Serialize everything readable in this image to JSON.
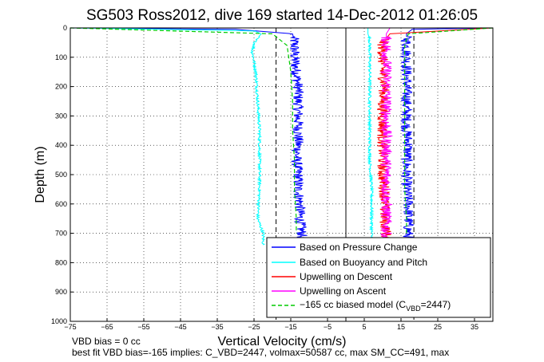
{
  "chart_data": {
    "type": "line",
    "title": "SG503 Ross2012, dive 169 started 14-Dec-2012 01:26:05",
    "xlabel": "Vertical Velocity (cm/s)",
    "ylabel": "Depth (m)",
    "xlim": [
      -75,
      40
    ],
    "ylim": [
      1000,
      0
    ],
    "y_reversed": true,
    "grid": true,
    "legend_position": "bottom-right",
    "xticks": [
      -75,
      -65,
      -55,
      -45,
      -35,
      -25,
      -15,
      -5,
      5,
      15,
      25,
      35
    ],
    "yticks": [
      0,
      100,
      200,
      300,
      400,
      500,
      600,
      700,
      800,
      900,
      1000
    ],
    "reference_lines": [
      {
        "x": 0,
        "style": "solid",
        "color": "#000000"
      },
      {
        "x": -19,
        "style": "dashed",
        "color": "#000000"
      },
      {
        "x": 18.5,
        "style": "dashed",
        "color": "#000000"
      }
    ],
    "series": [
      {
        "name": "Based on Pressure Change",
        "color": "#0000ff",
        "style": "solid",
        "depth": [
          0,
          5,
          20,
          50,
          100,
          150,
          200,
          250,
          300,
          350,
          400,
          450,
          500,
          550,
          600,
          650,
          700,
          720
        ],
        "descent_velocity": [
          -75,
          -30,
          -14.5,
          -14,
          -14,
          -13.5,
          -13,
          -13,
          -13,
          -13,
          -13,
          -13.5,
          -13,
          -13,
          -12.5,
          -12.5,
          -12,
          -12
        ],
        "ascent_velocity": [
          40,
          18,
          16.5,
          16.5,
          16.5,
          16.5,
          16.5,
          16.5,
          16.5,
          16.5,
          17,
          16.5,
          16.5,
          16.5,
          17,
          17,
          17,
          17
        ]
      },
      {
        "name": "Based on Buoyancy and Pitch",
        "color": "#00ffff",
        "style": "solid",
        "depth": [
          0,
          5,
          10,
          20,
          40,
          80,
          150,
          250,
          350,
          450,
          550,
          650,
          700,
          740
        ],
        "descent_velocity": [
          -75,
          -50,
          -25,
          -23,
          -24.5,
          -25.5,
          -24.5,
          -24,
          -23.5,
          -23.5,
          -23.5,
          -24,
          -22.5,
          -22.5
        ],
        "ascent_velocity": [
          6,
          6,
          6,
          6,
          6.5,
          6.5,
          6.5,
          6.5,
          6.5,
          6.5,
          7,
          7,
          7,
          7
        ]
      },
      {
        "name": "Upwelling on Descent",
        "color": "#ff0000",
        "style": "solid",
        "depth": [
          0,
          20,
          50,
          100,
          150,
          200,
          250,
          300,
          350,
          400,
          450,
          500,
          550,
          600,
          650,
          700,
          720
        ],
        "velocity": [
          40,
          12,
          10,
          10,
          10,
          10.5,
          10,
          10,
          10,
          10,
          10,
          10,
          10.5,
          10.5,
          10.5,
          11,
          11
        ]
      },
      {
        "name": "Upwelling on Ascent",
        "color": "#ff00ff",
        "style": "solid",
        "depth": [
          0,
          20,
          50,
          100,
          150,
          200,
          250,
          300,
          350,
          400,
          450,
          500,
          550,
          600,
          650,
          700,
          720
        ],
        "velocity": [
          12,
          11,
          11,
          11,
          11,
          11,
          11,
          11,
          11,
          11,
          11,
          11,
          11,
          11,
          11,
          11,
          11
        ]
      },
      {
        "name": "-165 cc biased model",
        "legend_label_prefix": "−165 cc biased model (C",
        "legend_label_subscript": "VBD",
        "legend_label_suffix": "=2447)",
        "color": "#00cc00",
        "style": "dashed",
        "depth": [
          0,
          20,
          60,
          150,
          250,
          350,
          450,
          550,
          650,
          700
        ],
        "descent_velocity": [
          -75,
          -20,
          -16,
          -15,
          -14.5,
          -14.5,
          -14,
          -14,
          -13.5,
          -13.5
        ],
        "ascent_velocity": [
          40,
          17,
          16,
          16,
          16,
          16,
          16,
          16,
          16.5,
          16.5
        ]
      }
    ],
    "annotations": [
      "VBD bias = 0 cc",
      "best fit VBD bias=-165 implies: C_VBD=2447, volmax=50587 cc, max SM_CC=491, max"
    ]
  }
}
